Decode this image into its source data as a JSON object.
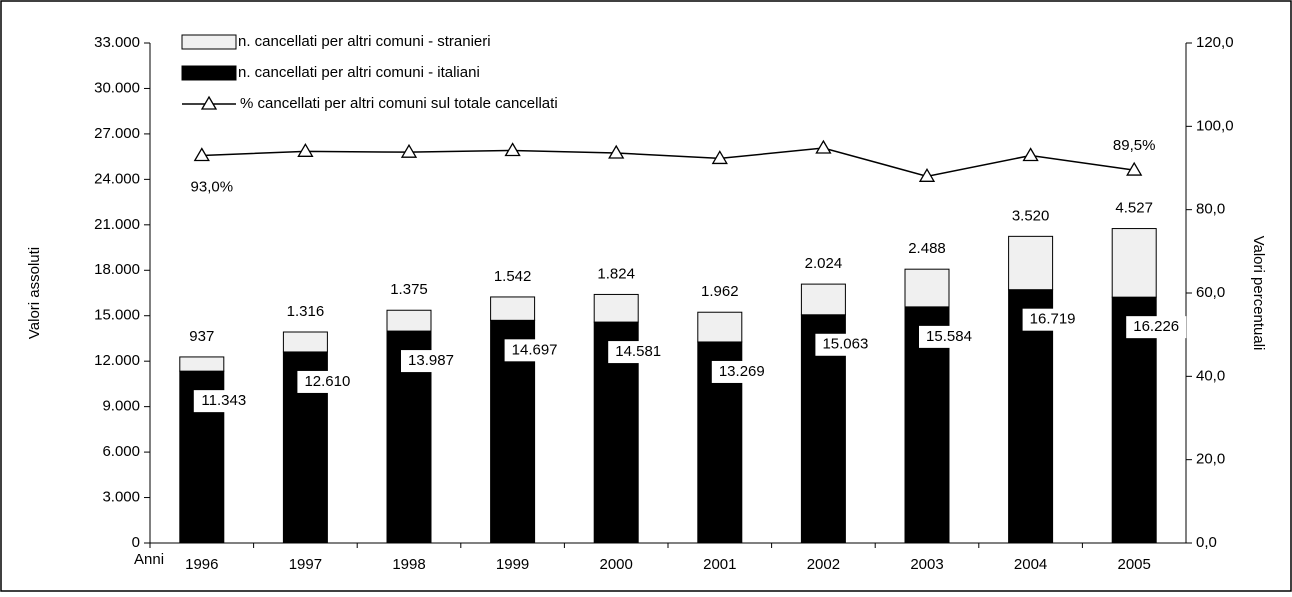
{
  "chart_data": {
    "type": "bar",
    "categories": [
      "1996",
      "1997",
      "1998",
      "1999",
      "2000",
      "2001",
      "2002",
      "2003",
      "2004",
      "2005"
    ],
    "x_label": "Anni",
    "y_label": "Valori assoluti",
    "y2_label": "Valori percentuali",
    "stacked": true,
    "series": [
      {
        "name": "n. cancellati per altri comuni - italiani",
        "color": "#000000",
        "values": [
          11343,
          12610,
          13987,
          14697,
          14581,
          13269,
          15063,
          15584,
          16719,
          16226
        ],
        "value_labels": [
          "11.343",
          "12.610",
          "13.987",
          "14.697",
          "14.581",
          "13.269",
          "15.063",
          "15.584",
          "16.719",
          "16.226"
        ]
      },
      {
        "name": "n. cancellati per altri comuni - stranieri",
        "color": "#f0f0f0",
        "values": [
          937,
          1316,
          1375,
          1542,
          1824,
          1962,
          2024,
          2488,
          3520,
          4527
        ],
        "value_labels": [
          "937",
          "1.316",
          "1.375",
          "1.542",
          "1.824",
          "1.962",
          "2.024",
          "2.488",
          "3.520",
          "4.527"
        ]
      },
      {
        "name": "% cancellati per altri comuni sul  totale cancellati",
        "color": "#000000",
        "type": "line",
        "axis": "y2",
        "values": [
          93.0,
          94.0,
          93.8,
          94.2,
          93.6,
          92.3,
          94.8,
          88.0,
          93.0,
          89.5
        ],
        "value_labels": [
          "93,0%",
          null,
          null,
          null,
          null,
          null,
          null,
          null,
          null,
          "89,5%"
        ]
      }
    ],
    "ylim": [
      0,
      33000
    ],
    "yticks": [
      0,
      {
        "value": 3000,
        "label": "3.000"
      },
      {
        "value": 6000,
        "label": "6.000"
      },
      {
        "value": 9000,
        "label": "9.000"
      },
      {
        "value": 12000,
        "label": "12.000"
      },
      {
        "value": 15000,
        "label": "15.000"
      },
      {
        "value": 18000,
        "label": "18.000"
      },
      {
        "value": 21000,
        "label": "21.000"
      },
      {
        "value": 24000,
        "label": "24.000"
      },
      {
        "value": 27000,
        "label": "27.000"
      },
      {
        "value": 30000,
        "label": "30.000"
      },
      {
        "value": 33000,
        "label": "33.000"
      }
    ],
    "y2lim": [
      0,
      120
    ],
    "y2ticks": [
      {
        "value": 0,
        "label": "0,0"
      },
      {
        "value": 20,
        "label": "20,0"
      },
      {
        "value": 40,
        "label": "40,0"
      },
      {
        "value": 60,
        "label": "60,0"
      },
      {
        "value": 80,
        "label": "80,0"
      },
      {
        "value": 100,
        "label": "100,0"
      },
      {
        "value": 120,
        "label": "120,0"
      }
    ],
    "legend": "top-left",
    "grid": false
  }
}
